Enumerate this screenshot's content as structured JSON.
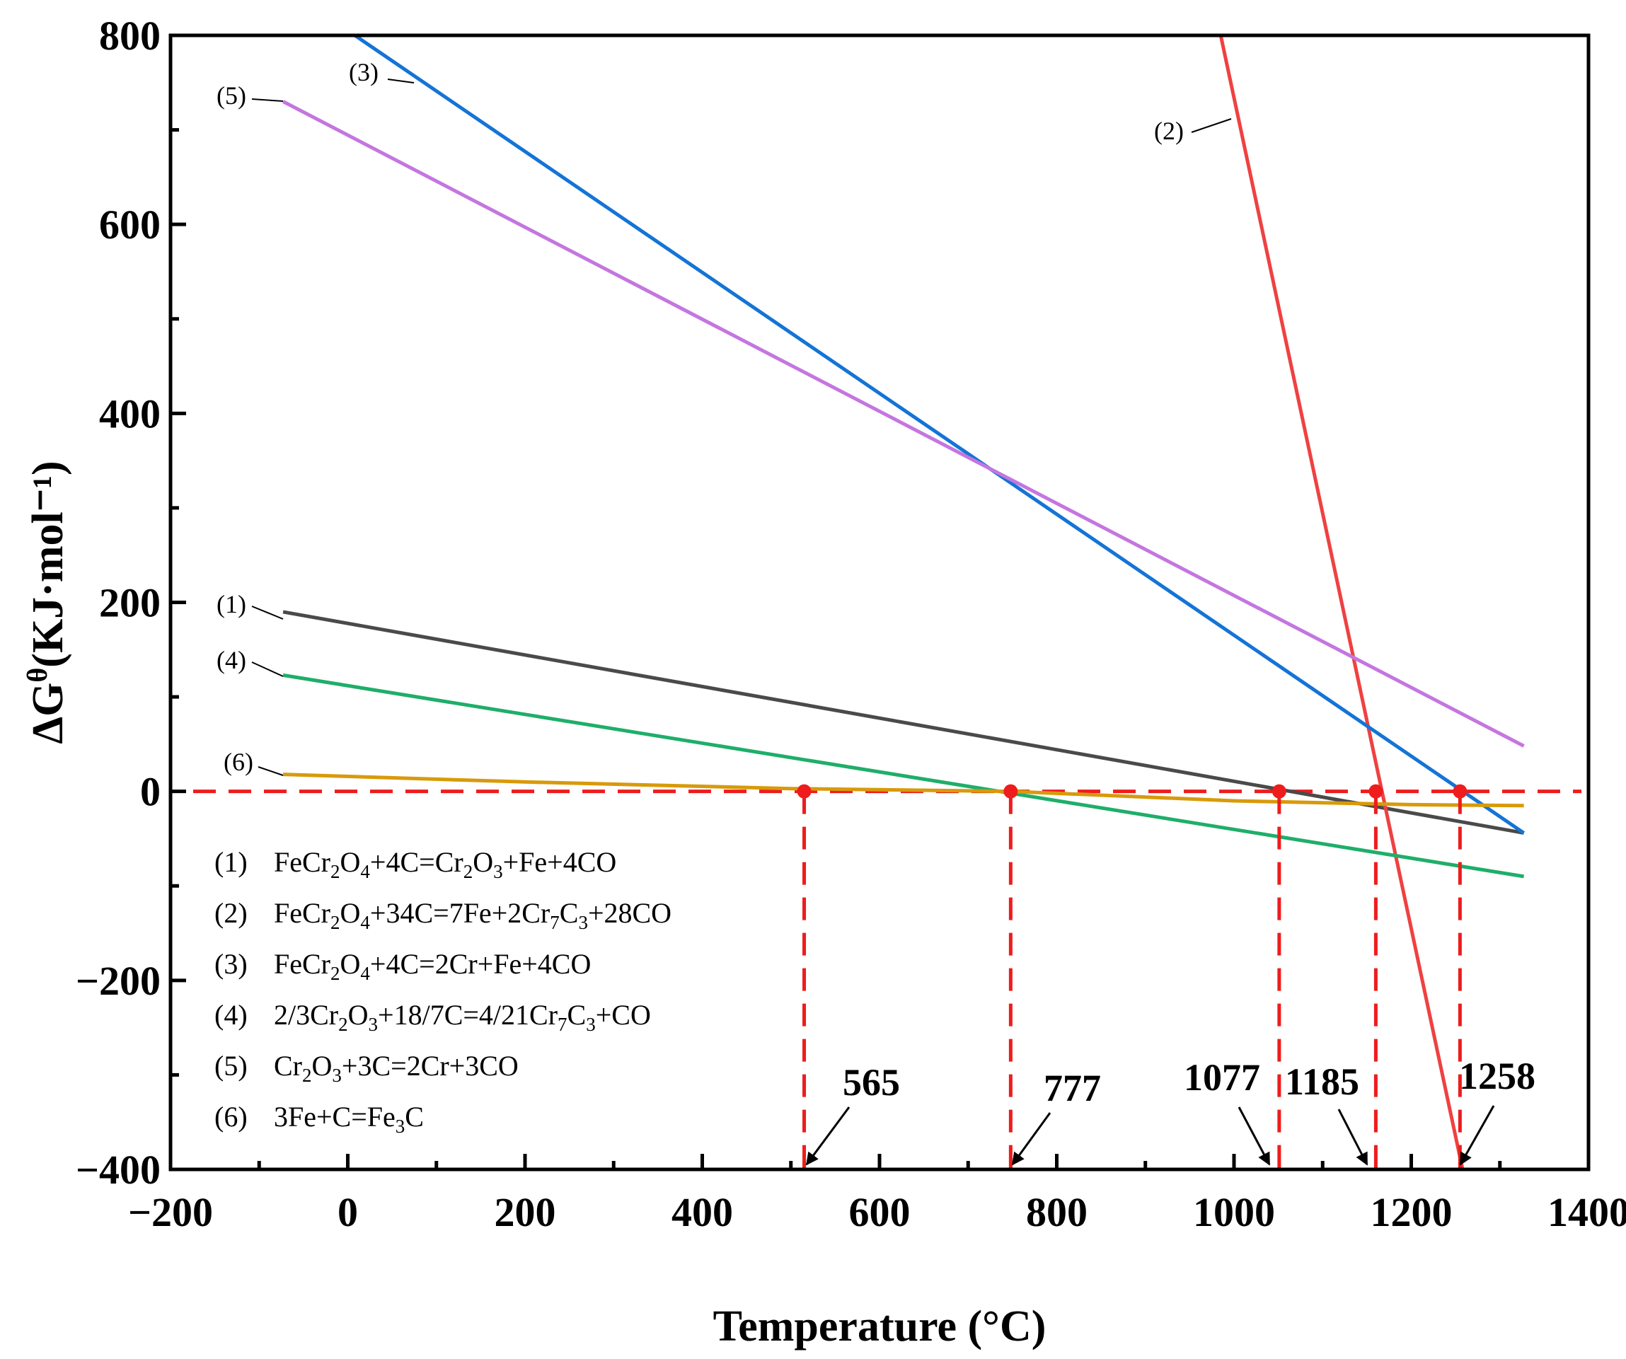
{
  "chart_data": {
    "type": "line",
    "title": "",
    "xlabel": "Temperature (°C)",
    "ylabel": "ΔGθ(KJ·mol⁻¹)",
    "xlim": [
      -200,
      1400
    ],
    "ylim": [
      -400,
      800
    ],
    "xticks": [
      -200,
      0,
      200,
      400,
      600,
      800,
      1000,
      1200,
      1400
    ],
    "yticks": [
      -400,
      -200,
      0,
      200,
      400,
      600,
      800
    ],
    "xtick_labels": [
      "−200",
      "0",
      "200",
      "400",
      "600",
      "800",
      "1000",
      "1200",
      "1400"
    ],
    "ytick_labels": [
      "−400",
      "−200",
      "0",
      "200",
      "400",
      "600",
      "800"
    ],
    "series": [
      {
        "id": "1",
        "tag": "(1)",
        "name": "(1)  FeCr2O4+4C=Cr2O3+Fe+4CO",
        "color": "#4a4a4a",
        "x": [
          -73,
          1327
        ],
        "y": [
          190,
          -44
        ]
      },
      {
        "id": "2",
        "tag": "(2)",
        "name": "(2)  FeCr2O4+34C=7Fe+2Cr7C3+28CO",
        "color": "#ef4141",
        "x": [
          985,
          1258
        ],
        "y": [
          800,
          -400
        ]
      },
      {
        "id": "3",
        "tag": "(3)",
        "name": "(3)  FeCr2O4+4C=2Cr+Fe+4CO",
        "color": "#1474d6",
        "x": [
          8,
          1327
        ],
        "y": [
          800,
          -44
        ]
      },
      {
        "id": "4",
        "tag": "(4)",
        "name": "(4)  2/3Cr2O3+18/7C=4/21Cr7C3+CO",
        "color": "#1fae6a",
        "x": [
          -73,
          1327
        ],
        "y": [
          123,
          -90
        ]
      },
      {
        "id": "5",
        "tag": "(5)",
        "name": "(5)  Cr2O3+3C=2Cr+3CO",
        "color": "#c476e0",
        "x": [
          -73,
          1327
        ],
        "y": [
          730,
          48
        ]
      },
      {
        "id": "6",
        "tag": "(6)",
        "name": "(6)  3Fe+C=Fe3C",
        "color": "#d89a0b",
        "x": [
          -73,
          200,
          500,
          750,
          1000,
          1200,
          1327
        ],
        "y": [
          18,
          10,
          3,
          0,
          -10,
          -14,
          -15
        ]
      }
    ],
    "legend": {
      "placement": "lower-left",
      "entries": [
        {
          "num": "(1)",
          "formula": [
            [
              "FeCr",
              "n"
            ],
            [
              "2",
              "sub"
            ],
            [
              "O",
              "n"
            ],
            [
              "4",
              "sub"
            ],
            [
              "+4C=Cr",
              "n"
            ],
            [
              "2",
              "sub"
            ],
            [
              "O",
              "n"
            ],
            [
              "3",
              "sub"
            ],
            [
              "+Fe+4CO",
              "n"
            ]
          ]
        },
        {
          "num": "(2)",
          "formula": [
            [
              "FeCr",
              "n"
            ],
            [
              "2",
              "sub"
            ],
            [
              "O",
              "n"
            ],
            [
              "4",
              "sub"
            ],
            [
              "+34C=7Fe+2Cr",
              "n"
            ],
            [
              "7",
              "sub"
            ],
            [
              "C",
              "n"
            ],
            [
              "3",
              "sub"
            ],
            [
              "+28CO",
              "n"
            ]
          ]
        },
        {
          "num": "(3)",
          "formula": [
            [
              "FeCr",
              "n"
            ],
            [
              "2",
              "sub"
            ],
            [
              "O",
              "n"
            ],
            [
              "4",
              "sub"
            ],
            [
              "+4C=2Cr+Fe+4CO",
              "n"
            ]
          ]
        },
        {
          "num": "(4)",
          "formula": [
            [
              "2/3Cr",
              "n"
            ],
            [
              "2",
              "sub"
            ],
            [
              "O",
              "n"
            ],
            [
              "3",
              "sub"
            ],
            [
              "+18/7C=4/21Cr",
              "n"
            ],
            [
              "7",
              "sub"
            ],
            [
              "C",
              "n"
            ],
            [
              "3",
              "sub"
            ],
            [
              "+CO",
              "n"
            ]
          ]
        },
        {
          "num": "(5)",
          "formula": [
            [
              "Cr",
              "n"
            ],
            [
              "2",
              "sub"
            ],
            [
              "O",
              "n"
            ],
            [
              "3",
              "sub"
            ],
            [
              "+3C=2Cr+3CO",
              "n"
            ]
          ]
        },
        {
          "num": "(6)",
          "formula": [
            [
              "3Fe+C=Fe",
              "n"
            ],
            [
              "3",
              "sub"
            ],
            [
              "C",
              "n"
            ]
          ]
        }
      ]
    },
    "zero_reference_line": {
      "y": 0,
      "color": "#ee1c1c",
      "style": "dashed"
    },
    "crossing_points": [
      {
        "x": 515,
        "y": 0,
        "label": "565"
      },
      {
        "x": 748,
        "y": 0,
        "label": "777"
      },
      {
        "x": 1051,
        "y": 0,
        "label": "1077"
      },
      {
        "x": 1160,
        "y": 0,
        "label": "1185"
      },
      {
        "x": 1255,
        "y": 0,
        "label": "1258"
      }
    ],
    "crossing_color": "#ee1c1c"
  }
}
